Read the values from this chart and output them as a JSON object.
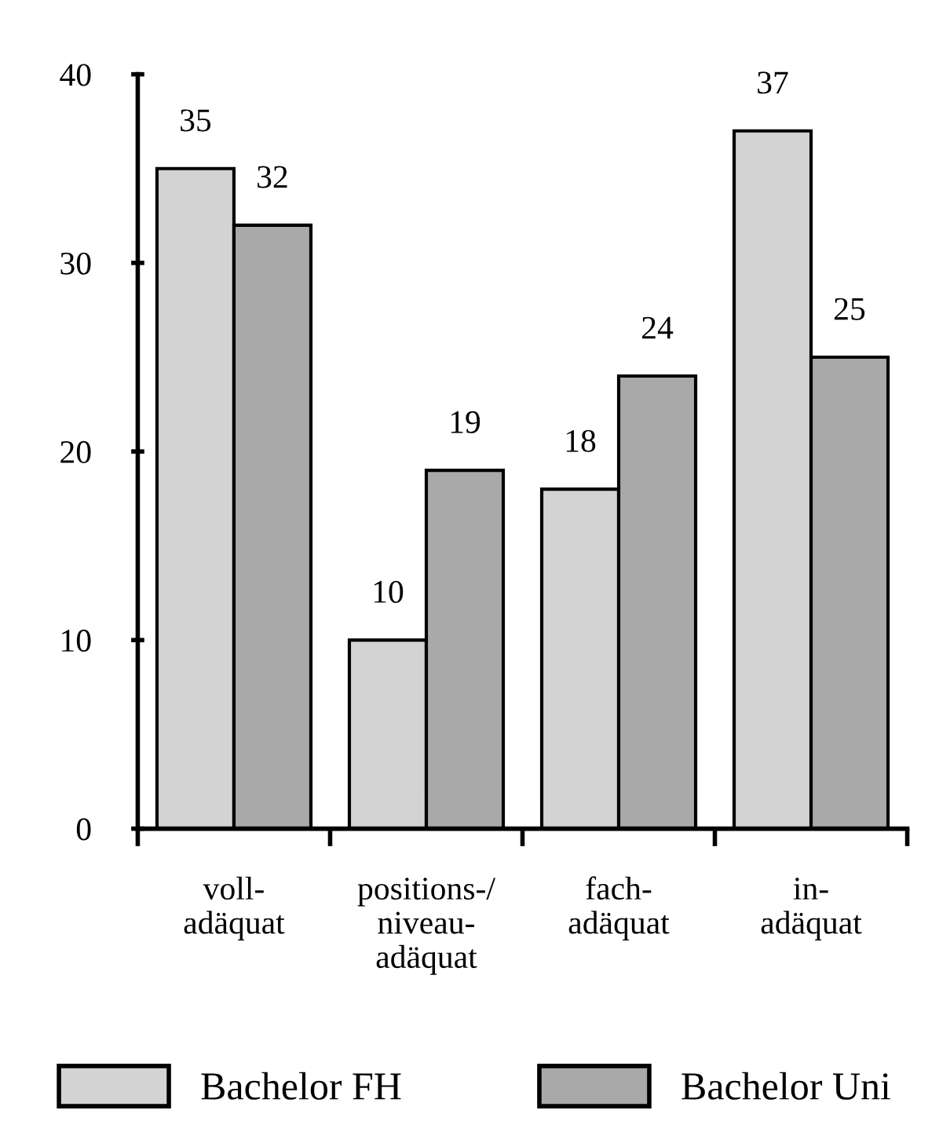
{
  "chart_data": {
    "type": "bar",
    "categories": [
      "voll-\nadäquat",
      "positions-/\nniveau-\nadäquat",
      "fach-\nadäquat",
      "in-\nadäquat"
    ],
    "series": [
      {
        "name": "Bachelor FH",
        "color": "#d3d3d3",
        "values": [
          35,
          10,
          18,
          37
        ]
      },
      {
        "name": "Bachelor Uni",
        "color": "#a9a9a9",
        "values": [
          32,
          19,
          24,
          25
        ]
      }
    ],
    "ylim": [
      0,
      40
    ],
    "yticks": [
      0,
      10,
      20,
      30,
      40
    ],
    "grid": false,
    "legend": "bottom",
    "data_labels": true
  }
}
